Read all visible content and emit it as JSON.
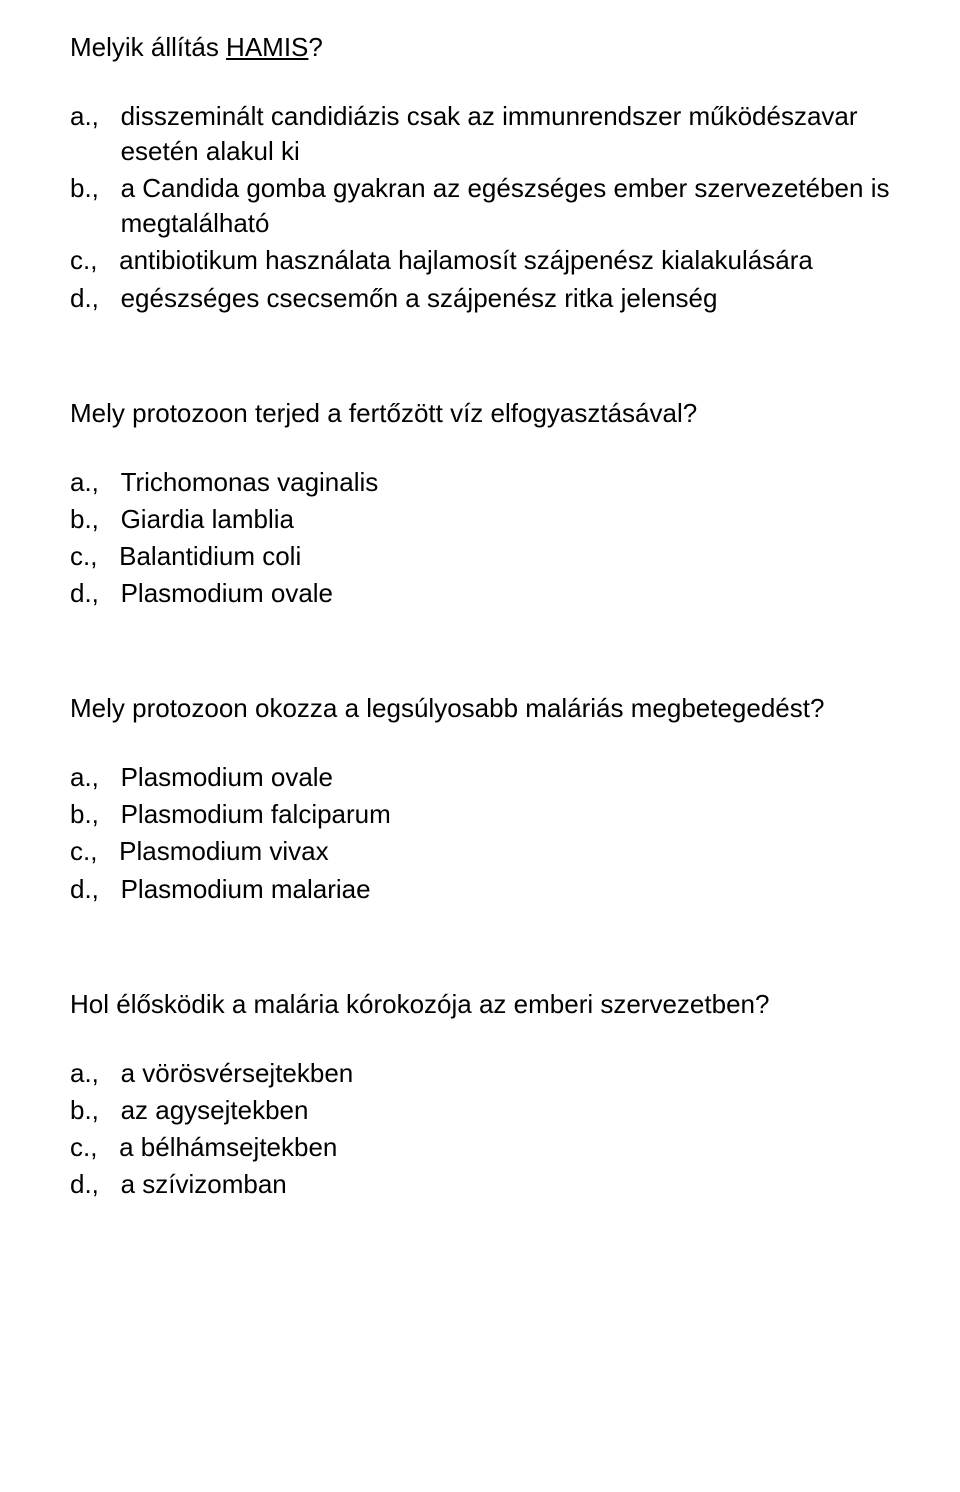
{
  "text_color": "#000000",
  "background_color": "#ffffff",
  "font_family": "Arial, Helvetica, sans-serif",
  "font_size_pt": 20,
  "questions": [
    {
      "prompt_prefix": "Melyik állítás ",
      "prompt_underlined": "HAMIS",
      "prompt_suffix": "?",
      "options": [
        {
          "label": "a.,   ",
          "text": "disszeminált candidiázis csak az immunrendszer működészavar esetén alakul ki"
        },
        {
          "label": "b.,   ",
          "text": "a Candida gomba gyakran az egészséges ember szervezetében is megtalálható"
        },
        {
          "label": "c.,   ",
          "text": "antibiotikum használata hajlamosít szájpenész kialakulására"
        },
        {
          "label": "d.,   ",
          "text": "egészséges csecsemőn a szájpenész ritka jelenség"
        }
      ]
    },
    {
      "prompt": "Mely protozoon terjed a fertőzött víz elfogyasztásával?",
      "options": [
        {
          "label": "a.,   ",
          "text": "Trichomonas vaginalis"
        },
        {
          "label": "b.,   ",
          "text": "Giardia lamblia"
        },
        {
          "label": "c.,   ",
          "text": "Balantidium coli"
        },
        {
          "label": "d.,   ",
          "text": "Plasmodium ovale"
        }
      ]
    },
    {
      "prompt": "Mely protozoon okozza a legsúlyosabb maláriás megbetegedést?",
      "options": [
        {
          "label": "a.,   ",
          "text": "Plasmodium ovale"
        },
        {
          "label": "b.,   ",
          "text": "Plasmodium falciparum"
        },
        {
          "label": "c.,   ",
          "text": "Plasmodium vivax"
        },
        {
          "label": "d.,   ",
          "text": "Plasmodium malariae"
        }
      ]
    },
    {
      "prompt": "Hol élősködik a malária kórokozója az emberi szervezetben?",
      "options": [
        {
          "label": "a.,   ",
          "text": "a vörösvérsejtekben"
        },
        {
          "label": "b.,   ",
          "text": "az agysejtekben"
        },
        {
          "label": "c.,   ",
          "text": "a bélhámsejtekben"
        },
        {
          "label": "d.,   ",
          "text": "a szívizomban"
        }
      ]
    }
  ]
}
